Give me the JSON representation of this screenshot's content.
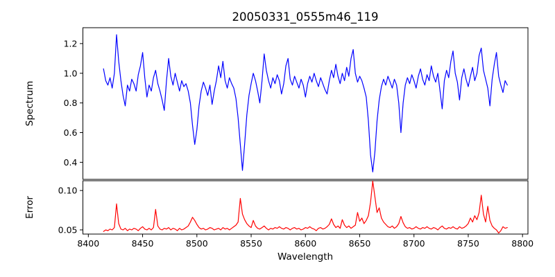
{
  "chart_data": {
    "type": "line",
    "title": "20050331_0555m46_119",
    "xlabel": "Wavelength",
    "grid": false,
    "legend": null,
    "xlim": [
      8395,
      8805
    ],
    "x_tick_values": [
      8400,
      8450,
      8500,
      8550,
      8600,
      8650,
      8700,
      8750,
      8800
    ],
    "x_tick_labels": [
      "8400",
      "8450",
      "8500",
      "8550",
      "8600",
      "8650",
      "8700",
      "8750",
      "8800"
    ],
    "x": [
      8414,
      8416,
      8418,
      8420,
      8422,
      8424,
      8426,
      8428,
      8430,
      8432,
      8434,
      8436,
      8438,
      8440,
      8442,
      8444,
      8446,
      8448,
      8450,
      8452,
      8454,
      8456,
      8458,
      8460,
      8462,
      8464,
      8466,
      8468,
      8470,
      8472,
      8474,
      8476,
      8478,
      8480,
      8482,
      8484,
      8486,
      8488,
      8490,
      8492,
      8494,
      8496,
      8498,
      8500,
      8502,
      8504,
      8506,
      8508,
      8510,
      8512,
      8514,
      8516,
      8518,
      8520,
      8522,
      8524,
      8526,
      8528,
      8530,
      8532,
      8534,
      8536,
      8538,
      8540,
      8542,
      8544,
      8546,
      8548,
      8550,
      8552,
      8554,
      8556,
      8558,
      8560,
      8562,
      8564,
      8566,
      8568,
      8570,
      8572,
      8574,
      8576,
      8578,
      8580,
      8582,
      8584,
      8586,
      8588,
      8590,
      8592,
      8594,
      8596,
      8598,
      8600,
      8602,
      8604,
      8606,
      8608,
      8610,
      8612,
      8614,
      8616,
      8618,
      8620,
      8622,
      8624,
      8626,
      8628,
      8630,
      8632,
      8634,
      8636,
      8638,
      8640,
      8642,
      8644,
      8646,
      8648,
      8650,
      8652,
      8654,
      8656,
      8658,
      8660,
      8662,
      8664,
      8666,
      8668,
      8670,
      8672,
      8674,
      8676,
      8678,
      8680,
      8682,
      8684,
      8686,
      8688,
      8690,
      8692,
      8694,
      8696,
      8698,
      8700,
      8702,
      8704,
      8706,
      8708,
      8710,
      8712,
      8714,
      8716,
      8718,
      8720,
      8722,
      8724,
      8726,
      8728,
      8730,
      8732,
      8734,
      8736,
      8738,
      8740,
      8742,
      8744,
      8746,
      8748,
      8750,
      8752,
      8754,
      8756,
      8758,
      8760,
      8762,
      8764,
      8766,
      8768,
      8770,
      8772,
      8774,
      8776,
      8778,
      8780,
      8782,
      8784,
      8786
    ],
    "panels": [
      {
        "name": "spectrum",
        "ylabel": "Spectrum",
        "ylim": [
          0.285,
          1.307
        ],
        "y_tick_values": [
          0.4,
          0.6,
          0.8,
          1.0,
          1.2
        ],
        "y_tick_labels": [
          "0.4",
          "0.6",
          "0.8",
          "1.0",
          "1.2"
        ],
        "line_color": "#0000ff",
        "features": "Ca II triplet absorption lines at 8498, 8542, 8662; dip at 8688; spike to 1.26 at 8426",
        "y": [
          1.03,
          0.95,
          0.92,
          0.97,
          0.9,
          1.0,
          1.26,
          1.08,
          0.95,
          0.85,
          0.78,
          0.92,
          0.88,
          0.96,
          0.93,
          0.88,
          0.99,
          1.05,
          1.14,
          0.97,
          0.84,
          0.92,
          0.88,
          0.97,
          1.02,
          0.93,
          0.88,
          0.82,
          0.75,
          0.95,
          1.1,
          0.98,
          0.92,
          1.0,
          0.94,
          0.88,
          0.95,
          0.91,
          0.93,
          0.88,
          0.8,
          0.65,
          0.52,
          0.62,
          0.78,
          0.88,
          0.94,
          0.9,
          0.85,
          0.92,
          0.79,
          0.88,
          0.95,
          1.05,
          0.97,
          1.08,
          0.95,
          0.9,
          0.97,
          0.93,
          0.9,
          0.83,
          0.7,
          0.52,
          0.345,
          0.52,
          0.72,
          0.85,
          0.93,
          1.0,
          0.95,
          0.88,
          0.8,
          0.95,
          1.13,
          1.02,
          0.95,
          0.9,
          0.97,
          0.93,
          0.99,
          0.95,
          0.86,
          0.93,
          1.05,
          1.1,
          0.96,
          0.92,
          0.98,
          0.94,
          0.9,
          0.96,
          0.92,
          0.84,
          0.93,
          0.98,
          0.94,
          1.0,
          0.95,
          0.91,
          0.97,
          0.93,
          0.89,
          0.86,
          0.95,
          1.02,
          0.97,
          1.06,
          0.98,
          0.93,
          1.0,
          0.95,
          1.04,
          0.98,
          1.1,
          1.16,
          1.0,
          0.94,
          0.98,
          0.95,
          0.9,
          0.84,
          0.68,
          0.45,
          0.335,
          0.47,
          0.68,
          0.82,
          0.91,
          0.96,
          0.92,
          0.98,
          0.94,
          0.9,
          0.96,
          0.92,
          0.8,
          0.6,
          0.8,
          0.92,
          0.97,
          0.93,
          0.99,
          0.95,
          0.9,
          0.98,
          1.03,
          0.96,
          0.92,
          0.99,
          0.95,
          1.05,
          0.98,
          0.94,
          1.0,
          0.88,
          0.76,
          0.95,
          1.02,
          0.97,
          1.08,
          1.15,
          1.0,
          0.94,
          0.82,
          0.97,
          1.03,
          0.96,
          0.91,
          0.98,
          1.04,
          0.95,
          1.0,
          1.12,
          1.17,
          1.02,
          0.96,
          0.9,
          0.78,
          0.96,
          1.06,
          1.14,
          0.98,
          0.92,
          0.87,
          0.95,
          0.92
        ]
      },
      {
        "name": "error",
        "ylabel": "Error",
        "ylim": [
          0.0447,
          0.1124
        ],
        "y_tick_values": [
          0.05,
          0.1
        ],
        "y_tick_labels": [
          "0.05",
          "0.10"
        ],
        "line_color": "#ff0000",
        "features": "baseline ~0.052 with spikes at 8426, 8462, 8540, max 0.112 at 8662, spikes near 8760-8775",
        "y": [
          0.048,
          0.05,
          0.049,
          0.051,
          0.05,
          0.053,
          0.083,
          0.058,
          0.051,
          0.05,
          0.052,
          0.049,
          0.051,
          0.05,
          0.052,
          0.051,
          0.049,
          0.052,
          0.054,
          0.051,
          0.05,
          0.052,
          0.05,
          0.053,
          0.076,
          0.055,
          0.051,
          0.05,
          0.052,
          0.051,
          0.053,
          0.05,
          0.052,
          0.051,
          0.049,
          0.052,
          0.05,
          0.051,
          0.053,
          0.055,
          0.06,
          0.066,
          0.062,
          0.057,
          0.053,
          0.051,
          0.052,
          0.05,
          0.051,
          0.053,
          0.052,
          0.05,
          0.051,
          0.052,
          0.05,
          0.053,
          0.051,
          0.052,
          0.05,
          0.052,
          0.054,
          0.056,
          0.06,
          0.09,
          0.07,
          0.063,
          0.058,
          0.055,
          0.053,
          0.062,
          0.055,
          0.052,
          0.051,
          0.053,
          0.055,
          0.052,
          0.05,
          0.052,
          0.051,
          0.053,
          0.052,
          0.054,
          0.052,
          0.051,
          0.053,
          0.052,
          0.05,
          0.052,
          0.053,
          0.051,
          0.052,
          0.05,
          0.051,
          0.053,
          0.052,
          0.054,
          0.052,
          0.051,
          0.049,
          0.052,
          0.053,
          0.051,
          0.052,
          0.054,
          0.057,
          0.064,
          0.057,
          0.053,
          0.055,
          0.052,
          0.063,
          0.056,
          0.053,
          0.055,
          0.052,
          0.054,
          0.056,
          0.072,
          0.061,
          0.065,
          0.058,
          0.062,
          0.068,
          0.085,
          0.112,
          0.092,
          0.072,
          0.078,
          0.065,
          0.06,
          0.057,
          0.054,
          0.053,
          0.055,
          0.052,
          0.054,
          0.058,
          0.067,
          0.059,
          0.054,
          0.052,
          0.053,
          0.051,
          0.052,
          0.054,
          0.052,
          0.051,
          0.053,
          0.052,
          0.054,
          0.052,
          0.051,
          0.053,
          0.052,
          0.05,
          0.053,
          0.055,
          0.052,
          0.051,
          0.053,
          0.052,
          0.054,
          0.052,
          0.051,
          0.054,
          0.052,
          0.053,
          0.055,
          0.058,
          0.065,
          0.06,
          0.068,
          0.063,
          0.072,
          0.094,
          0.07,
          0.06,
          0.08,
          0.062,
          0.055,
          0.052,
          0.05,
          0.046,
          0.049,
          0.054,
          0.052,
          0.053
        ]
      }
    ]
  }
}
